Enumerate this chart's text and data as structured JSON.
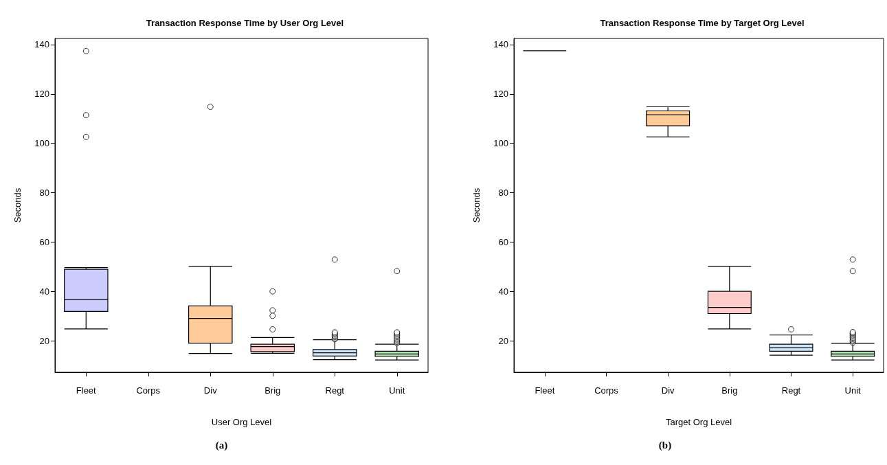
{
  "chart_data": [
    {
      "type": "box",
      "title": "Transaction Response Time by User Org Level",
      "xlabel": "User Org Level",
      "ylabel": "Seconds",
      "categories": [
        "Fleet",
        "Corps",
        "Div",
        "Brig",
        "Regt",
        "Unit"
      ],
      "boxes": [
        {
          "low": 24.8,
          "q1": 31.9,
          "median": 36.7,
          "q3": 48.9,
          "high": 49.6,
          "outliers": [
            102.6,
            111.4,
            137.4
          ]
        },
        null,
        {
          "low": 14.8,
          "q1": 19.0,
          "median": 29.0,
          "q3": 34.1,
          "high": 50.1,
          "outliers": [
            114.8
          ]
        },
        {
          "low": 14.9,
          "q1": 15.6,
          "median": 17.6,
          "q3": 18.6,
          "high": 21.3,
          "outliers": [
            24.6,
            30.1,
            32.3,
            40.0
          ]
        },
        {
          "low": 12.3,
          "q1": 13.8,
          "median": 15.1,
          "q3": 16.4,
          "high": 20.4,
          "outliers": [
            20.6,
            21.0,
            21.5,
            22.0,
            22.5,
            23.0,
            23.4,
            52.9
          ]
        },
        {
          "low": 12.2,
          "q1": 13.6,
          "median": 14.6,
          "q3": 15.7,
          "high": 18.6,
          "outliers": [
            19.0,
            19.5,
            20.0,
            20.5,
            21.0,
            21.5,
            22.0,
            22.5,
            23.0,
            23.4,
            48.2
          ]
        }
      ],
      "colors": [
        "#ccccff",
        null,
        "#ffcc99",
        "#ffcccc",
        "#cce6fa",
        "#b4e6b4"
      ],
      "ylim": [
        7.2,
        142.5
      ],
      "yticks": [
        20,
        40,
        60,
        80,
        100,
        120,
        140
      ],
      "grid": false,
      "annotations": [
        "(a)"
      ]
    },
    {
      "type": "box",
      "title": "Transaction Response Time by Target Org Level",
      "xlabel": "Target Org Level",
      "ylabel": "Seconds",
      "categories": [
        "Fleet",
        "Corps",
        "Div",
        "Brig",
        "Regt",
        "Unit"
      ],
      "boxes": [
        {
          "low": 137.5,
          "q1": 137.5,
          "median": 137.5,
          "q3": 137.5,
          "high": 137.5
        },
        null,
        {
          "low": 102.6,
          "q1": 107.1,
          "median": 111.6,
          "q3": 113.2,
          "high": 114.8
        },
        {
          "low": 24.8,
          "q1": 31.0,
          "median": 33.5,
          "q3": 40.0,
          "high": 50.1
        },
        {
          "low": 14.1,
          "q1": 15.7,
          "median": 17.1,
          "q3": 18.6,
          "high": 22.3,
          "outliers": [
            24.6
          ]
        },
        {
          "low": 12.2,
          "q1": 13.6,
          "median": 14.6,
          "q3": 15.7,
          "high": 18.9,
          "outliers": [
            19.2,
            19.7,
            20.2,
            20.7,
            21.2,
            21.7,
            22.2,
            22.7,
            23.1,
            23.5,
            48.2,
            52.9
          ]
        }
      ],
      "colors": [
        null,
        null,
        "#ffcc99",
        "#ffcccc",
        "#cce6fa",
        "#b4e6b4"
      ],
      "ylim": [
        7.2,
        142.5
      ],
      "yticks": [
        20,
        40,
        60,
        80,
        100,
        120,
        140
      ],
      "grid": false,
      "annotations": [
        "(b)"
      ]
    }
  ]
}
